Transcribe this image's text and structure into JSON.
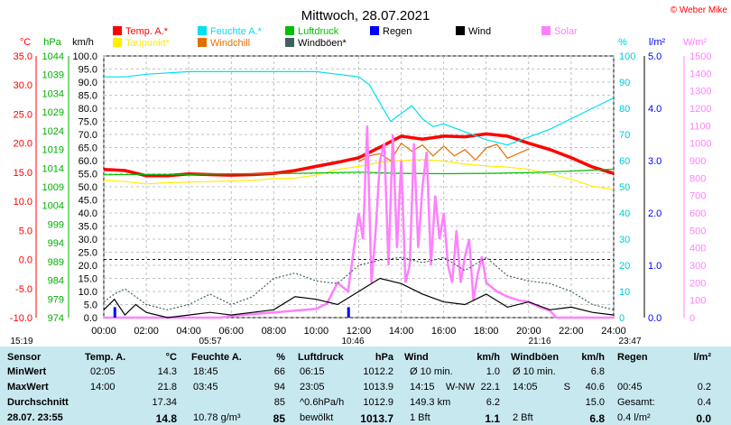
{
  "chart_data": {
    "type": "line",
    "title": "Mittwoch, 28.07.2021",
    "credit": "© Weber Mike",
    "legend": [
      {
        "name": "Temp. A.*",
        "color": "#ff0000"
      },
      {
        "name": "Feuchte A.*",
        "color": "#00e0f0"
      },
      {
        "name": "Luftdruck",
        "color": "#00c000"
      },
      {
        "name": "Regen",
        "color": "#0000ff"
      },
      {
        "name": "Wind",
        "color": "#000000"
      },
      {
        "name": "Solar",
        "color": "#ff80ff"
      },
      {
        "name": "Taupunkt*",
        "color": "#ffee00"
      },
      {
        "name": "Windchill",
        "color": "#e07000"
      },
      {
        "name": "Windböen*",
        "color": "#406060"
      }
    ],
    "axes": {
      "temp": {
        "unit": "°C",
        "ticks": [
          "35.0",
          "30.0",
          "25.0",
          "20.0",
          "15.0",
          "10.0",
          "5.0",
          "0.0",
          "-5.0",
          "-10.0"
        ],
        "range": [
          -10,
          35
        ]
      },
      "pressure": {
        "unit": "hPa",
        "ticks": [
          "1044",
          "1039",
          "1034",
          "1029",
          "1024",
          "1019",
          "1014",
          "1009",
          "1004",
          "999",
          "994",
          "989",
          "984",
          "979",
          "974"
        ],
        "range": [
          974,
          1044
        ]
      },
      "wind": {
        "unit": "km/h",
        "ticks": [
          "100.0",
          "95.0",
          "90.0",
          "85.0",
          "80.0",
          "75.0",
          "70.0",
          "65.0",
          "60.0",
          "55.0",
          "50.0",
          "45.0",
          "40.0",
          "35.0",
          "30.0",
          "25.0",
          "20.0",
          "15.0",
          "10.0",
          "5.0",
          "0.0"
        ],
        "range": [
          0,
          100
        ]
      },
      "humidity": {
        "unit": "%",
        "ticks": [
          "100",
          "90",
          "80",
          "70",
          "60",
          "50",
          "40",
          "30",
          "20",
          "10",
          "0"
        ],
        "range": [
          0,
          100
        ]
      },
      "rain": {
        "unit": "l/m²",
        "ticks": [
          "5.0",
          "4.0",
          "3.0",
          "2.0",
          "1.0",
          "0.0"
        ],
        "range": [
          0,
          5
        ]
      },
      "solar": {
        "unit": "W/m²",
        "ticks": [
          "1500",
          "1400",
          "1300",
          "1200",
          "1100",
          "1000",
          "900",
          "800",
          "700",
          "600",
          "500",
          "400",
          "300",
          "200",
          "100",
          "0"
        ],
        "range": [
          0,
          1500
        ]
      },
      "time": {
        "ticks": [
          "00:00",
          "02:00",
          "04:00",
          "06:00",
          "08:00",
          "10:00",
          "12:00",
          "14:00",
          "16:00",
          "18:00",
          "20:00",
          "22:00",
          "24:00"
        ],
        "range": [
          0,
          24
        ]
      }
    },
    "sun_times": [
      "15:19",
      "05:57",
      "10:46",
      "21:16",
      "23:47"
    ],
    "series": [
      {
        "name": "Temp. A.*",
        "unit": "°C",
        "x": [
          0,
          1,
          2,
          3,
          4,
          5,
          6,
          7,
          8,
          9,
          10,
          11,
          12,
          13,
          14,
          15,
          16,
          17,
          18,
          19,
          20,
          21,
          22,
          23,
          24
        ],
        "values": [
          15.5,
          15.3,
          14.4,
          14.4,
          14.7,
          14.6,
          14.5,
          14.6,
          14.8,
          15.3,
          16.0,
          16.7,
          17.5,
          19.3,
          21.2,
          20.7,
          21.2,
          21.1,
          21.6,
          21.2,
          20.0,
          18.9,
          17.5,
          15.9,
          14.8
        ]
      },
      {
        "name": "Taupunkt*",
        "unit": "°C",
        "x": [
          0,
          1,
          2,
          3,
          4,
          5,
          6,
          7,
          8,
          9,
          10,
          11,
          12,
          13,
          14,
          15,
          16,
          17,
          18,
          19,
          20,
          21,
          22,
          23,
          24
        ],
        "values": [
          13.6,
          13.4,
          13.0,
          13.2,
          13.3,
          13.4,
          13.5,
          13.6,
          13.9,
          14.0,
          14.5,
          15.5,
          16.0,
          16.7,
          17.0,
          17.2,
          16.9,
          16.4,
          16.1,
          15.9,
          15.5,
          14.7,
          13.8,
          12.6,
          12.0
        ]
      },
      {
        "name": "Luftdruck",
        "unit": "hPa",
        "x": [
          0,
          2,
          4,
          6,
          8,
          10,
          12,
          14,
          16,
          18,
          20,
          22,
          24
        ],
        "values": [
          1012.2,
          1012.3,
          1012.3,
          1012.5,
          1012.5,
          1012.7,
          1012.9,
          1012.6,
          1012.5,
          1012.6,
          1012.8,
          1013.2,
          1013.7
        ]
      },
      {
        "name": "Feuchte A.*",
        "unit": "%",
        "x": [
          0,
          1,
          2,
          4,
          6,
          8,
          10,
          11,
          12,
          12.5,
          13,
          13.5,
          14,
          14.5,
          15,
          15.5,
          16,
          17,
          18,
          19,
          20,
          21,
          22,
          23,
          24
        ],
        "values": [
          92,
          92,
          93,
          94,
          94,
          94,
          94,
          93,
          92,
          89,
          82,
          75,
          78,
          81,
          76,
          73,
          74,
          71,
          68,
          66,
          69,
          72,
          76,
          80,
          84
        ]
      },
      {
        "name": "Windchill",
        "unit": "°C",
        "x": [
          12,
          12.5,
          13,
          13.5,
          14,
          14.5,
          15,
          15.5,
          16,
          16.5,
          17,
          17.5,
          18,
          18.5,
          19,
          20
        ],
        "values": [
          16.8,
          17.8,
          18.2,
          17.0,
          20.0,
          18.6,
          19.7,
          17.8,
          19.5,
          17.8,
          18.9,
          17.1,
          19.2,
          19.8,
          17.4,
          19.0
        ]
      },
      {
        "name": "Solar",
        "unit": "W/m²",
        "x": [
          0,
          5.5,
          6,
          7,
          8,
          9,
          10,
          10.5,
          11,
          11.5,
          12,
          12.2,
          12.4,
          12.6,
          12.8,
          13,
          13.2,
          13.4,
          13.6,
          13.8,
          14,
          14.2,
          14.4,
          14.6,
          14.8,
          15,
          15.2,
          15.4,
          15.6,
          15.8,
          16,
          16.2,
          16.4,
          16.6,
          16.8,
          17,
          17.2,
          17.4,
          17.6,
          17.8,
          18,
          18.5,
          19,
          19.5,
          20,
          20.5,
          21,
          21.3,
          24
        ],
        "values": [
          0,
          0,
          10,
          20,
          30,
          40,
          50,
          80,
          200,
          150,
          600,
          450,
          1100,
          200,
          500,
          900,
          1000,
          300,
          1050,
          400,
          900,
          200,
          300,
          1000,
          400,
          750,
          950,
          300,
          700,
          450,
          600,
          300,
          200,
          500,
          200,
          350,
          450,
          100,
          250,
          350,
          200,
          150,
          120,
          100,
          90,
          60,
          40,
          0,
          0
        ]
      },
      {
        "name": "Wind",
        "unit": "km/h",
        "x": [
          0,
          0.5,
          1,
          1.5,
          2,
          3,
          4,
          5,
          6,
          7,
          8,
          9,
          10,
          11,
          12,
          13,
          14,
          15,
          16,
          17,
          18,
          19,
          20,
          21,
          22,
          23,
          24
        ],
        "values": [
          3,
          7,
          1,
          5,
          2,
          0,
          1,
          2,
          1,
          2,
          3,
          8,
          7,
          5,
          10,
          15,
          13,
          9,
          6,
          5,
          9,
          4,
          6,
          3,
          4,
          2,
          1
        ]
      },
      {
        "name": "Windböen*",
        "unit": "km/h",
        "x": [
          0,
          0.5,
          1,
          1.5,
          2,
          3,
          4,
          5,
          6,
          7,
          8,
          9,
          10,
          11,
          12,
          13,
          14,
          15,
          16,
          17,
          18,
          19,
          20,
          21,
          22,
          23,
          24
        ],
        "values": [
          6,
          9,
          11,
          8,
          5,
          3,
          5,
          9,
          5,
          8,
          15,
          17,
          14,
          13,
          20,
          22,
          23,
          21,
          23,
          18,
          23,
          16,
          14,
          13,
          10,
          5,
          3
        ]
      },
      {
        "name": "Regen",
        "unit": "l/m²",
        "x": [
          0.5,
          11.5
        ],
        "values": [
          0.2,
          0.2
        ]
      }
    ]
  },
  "table": {
    "headers": {
      "sensor": "Sensor",
      "temp": "Temp. A.",
      "temp_unit": "°C",
      "hum": "Feuchte A.",
      "hum_unit": "%",
      "press": "Luftdruck",
      "press_unit": "hPa",
      "wind": "Wind",
      "wind_unit": "km/h",
      "gust": "Windböen",
      "gust_unit": "km/h",
      "rain": "Regen",
      "rain_unit": "l/m²"
    },
    "rows": {
      "min": {
        "label": "MinWert",
        "temp_t": "02:05",
        "temp_v": "14.3",
        "hum_t": "18:45",
        "hum_v": "66",
        "press_t": "06:15",
        "press_v": "1012.2",
        "wind_t": "Ø 10 min.",
        "wind_v": "1.0",
        "gust_t": "Ø 10 min.",
        "gust_v": "6.8",
        "rain_t": "",
        "rain_v": ""
      },
      "max": {
        "label": "MaxWert",
        "temp_t": "14:00",
        "temp_v": "21.8",
        "hum_t": "03:45",
        "hum_v": "94",
        "press_t": "23:05",
        "press_v": "1013.9",
        "wind_t": "14:15",
        "wind_dir": "W-NW",
        "wind_v": "22.1",
        "gust_t": "14:05",
        "gust_dir": "S",
        "gust_v": "40.6",
        "rain_t": "00:45",
        "rain_v": "0.2"
      },
      "avg": {
        "label": "Durchschnitt",
        "temp_v": "17.34",
        "hum_v": "85",
        "press_t": "^0.6hPa/h",
        "press_v": "1012.9",
        "wind_t": "149.3 km",
        "wind_v": "6.2",
        "gust_v": "15.0",
        "rain_t": "Gesamt:",
        "rain_v": "0.4"
      },
      "cur": {
        "label": "28.07. 23:55",
        "temp_v": "14.8",
        "hum_t": "10.78 g/m³",
        "hum_v": "85",
        "press_t": "bewölkt",
        "press_v": "1013.7",
        "wind_t": "1 Bft",
        "wind_v": "1.1",
        "gust_t": "2 Bft",
        "gust_v": "6.8",
        "rain_t": "0.4 l/m²",
        "rain_v": "0.0"
      }
    }
  }
}
